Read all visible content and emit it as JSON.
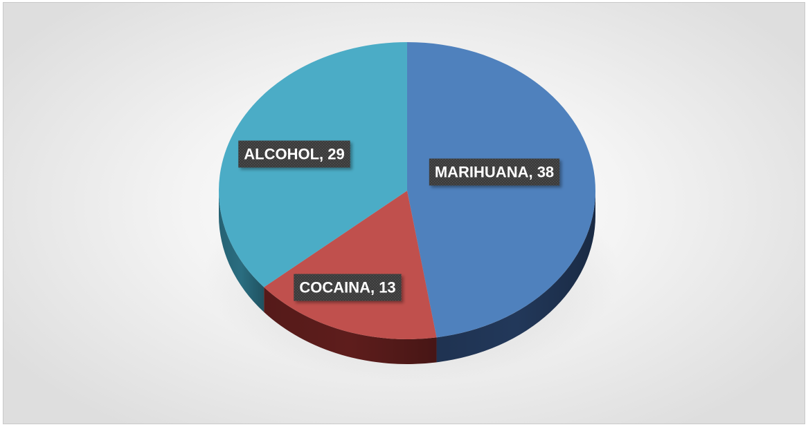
{
  "chart_data": {
    "type": "pie",
    "style": "3d",
    "title": "",
    "categories": [
      "MARIHUANA",
      "COCAINA",
      "ALCOHOL"
    ],
    "values": [
      38,
      13,
      29
    ],
    "colors": [
      "#4F81BD",
      "#C0504D",
      "#4BACC6"
    ],
    "side_colors": [
      "#22385a",
      "#5e1d1c",
      "#2a6d80"
    ],
    "labels": [
      "MARIHUANA, 38",
      "COCAINA, 13",
      "ALCOHOL, 29"
    ],
    "legend": "none"
  }
}
